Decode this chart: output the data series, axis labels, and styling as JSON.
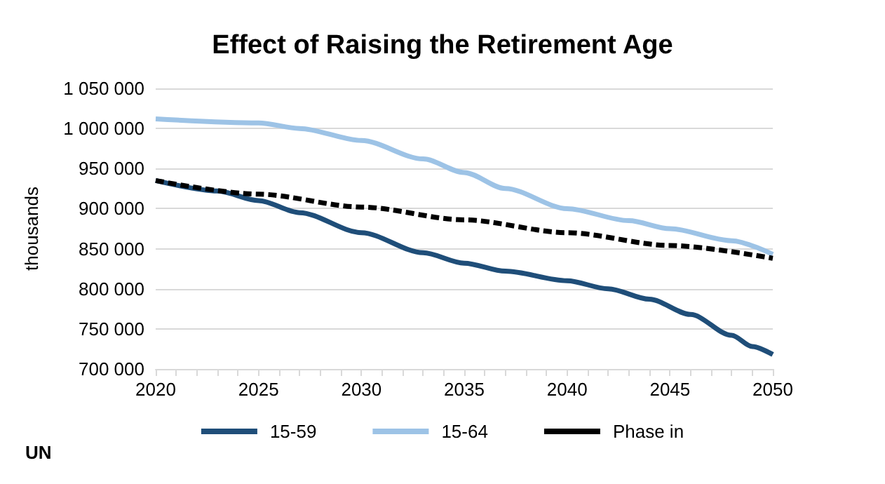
{
  "chart_data": {
    "type": "line",
    "title": "Effect of Raising the Retirement Age",
    "ylabel": "thousands",
    "annotations": [
      "UN"
    ],
    "xlim": [
      2020,
      2050
    ],
    "xticks": [
      2020,
      2025,
      2030,
      2035,
      2040,
      2045,
      2050
    ],
    "ylim": [
      700000,
      1050000
    ],
    "yticks": [
      {
        "value": 700000,
        "label": "700 000"
      },
      {
        "value": 750000,
        "label": "750 000"
      },
      {
        "value": 800000,
        "label": "800 000"
      },
      {
        "value": 850000,
        "label": "850 000"
      },
      {
        "value": 900000,
        "label": "900 000"
      },
      {
        "value": 950000,
        "label": "950 000"
      },
      {
        "value": 1000000,
        "label": "1 000 000"
      },
      {
        "value": 1050000,
        "label": "1 050 000"
      }
    ],
    "grid": "y",
    "legend": "bottom",
    "marker": "none",
    "series": [
      {
        "name": "15-59",
        "color": "#1f4e79",
        "x": [
          2020,
          2023,
          2025,
          2027,
          2030,
          2033,
          2035,
          2037,
          2040,
          2042,
          2044,
          2046,
          2048,
          2049,
          2050
        ],
        "values": [
          935000,
          922000,
          910000,
          895000,
          870000,
          845000,
          832000,
          822000,
          810000,
          800000,
          787000,
          768000,
          742000,
          728000,
          718000
        ]
      },
      {
        "name": "15-64",
        "color": "#9dc3e6",
        "x": [
          2020,
          2025,
          2027,
          2030,
          2033,
          2035,
          2037,
          2040,
          2043,
          2045,
          2048,
          2050
        ],
        "values": [
          1012000,
          1007000,
          1000000,
          985000,
          962000,
          945000,
          925000,
          900000,
          885000,
          875000,
          860000,
          843000
        ]
      },
      {
        "name": "Phase in",
        "color": "#000000",
        "line_style": "dashed",
        "x": [
          2020,
          2025,
          2030,
          2035,
          2040,
          2045,
          2050
        ],
        "values": [
          935000,
          918000,
          902000,
          886000,
          870000,
          854000,
          838000
        ]
      }
    ]
  }
}
